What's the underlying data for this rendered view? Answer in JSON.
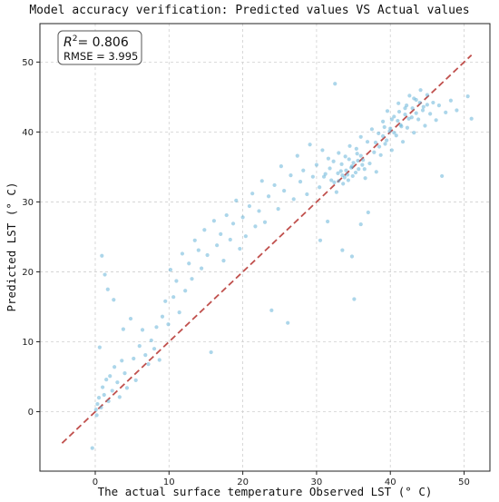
{
  "chart_data": {
    "type": "scatter",
    "title": "Model accuracy verification: Predicted values VS Actual values",
    "xlabel": "The actual surface temperature Observed LST (° C)",
    "ylabel": "Predicted LST (° C)",
    "xlim": [
      -7.5,
      53.5
    ],
    "ylim": [
      -8.5,
      55.5
    ],
    "xticks": [
      "0",
      "10",
      "20",
      "30",
      "40",
      "50"
    ],
    "yticks": [
      "0",
      "10",
      "20",
      "30",
      "40",
      "50"
    ],
    "grid": true,
    "reference_line": {
      "x": [
        -4.5,
        51
      ],
      "y": [
        -4.5,
        51
      ],
      "style": "dashed",
      "color": "#c0504d"
    },
    "stats": {
      "r2_label": "R",
      "r2_exponent": "2",
      "r2_value": "= 0.806",
      "rmse": "RMSE = 3.995"
    },
    "point_color": "#5aaed6",
    "points": [
      [
        -0.4,
        -5.2
      ],
      [
        0.1,
        0.3
      ],
      [
        0.3,
        1.1
      ],
      [
        0.5,
        2.0
      ],
      [
        0.2,
        -0.5
      ],
      [
        0.8,
        0.6
      ],
      [
        1.0,
        3.5
      ],
      [
        1.2,
        2.4
      ],
      [
        1.5,
        4.6
      ],
      [
        0.6,
        9.2
      ],
      [
        1.8,
        1.5
      ],
      [
        2.0,
        5.1
      ],
      [
        2.3,
        3.0
      ],
      [
        2.6,
        6.4
      ],
      [
        3.0,
        4.2
      ],
      [
        3.3,
        2.1
      ],
      [
        3.6,
        7.3
      ],
      [
        4.0,
        5.5
      ],
      [
        4.3,
        3.4
      ],
      [
        0.9,
        22.3
      ],
      [
        1.3,
        19.6
      ],
      [
        1.7,
        17.5
      ],
      [
        2.5,
        16.0
      ],
      [
        3.8,
        11.8
      ],
      [
        4.8,
        13.3
      ],
      [
        5.2,
        7.6
      ],
      [
        5.5,
        4.5
      ],
      [
        6.0,
        9.4
      ],
      [
        6.4,
        11.7
      ],
      [
        6.8,
        8.1
      ],
      [
        7.2,
        6.8
      ],
      [
        7.6,
        10.2
      ],
      [
        8.0,
        9.0
      ],
      [
        8.3,
        12.1
      ],
      [
        8.7,
        7.4
      ],
      [
        9.1,
        13.6
      ],
      [
        9.5,
        15.8
      ],
      [
        9.9,
        12.5
      ],
      [
        10.2,
        20.3
      ],
      [
        10.6,
        16.4
      ],
      [
        11.0,
        18.7
      ],
      [
        11.4,
        14.2
      ],
      [
        11.8,
        22.6
      ],
      [
        12.2,
        17.3
      ],
      [
        12.7,
        21.2
      ],
      [
        13.1,
        19.0
      ],
      [
        13.5,
        24.5
      ],
      [
        14.0,
        23.1
      ],
      [
        14.4,
        20.5
      ],
      [
        14.8,
        26.0
      ],
      [
        15.2,
        22.4
      ],
      [
        15.7,
        8.5
      ],
      [
        16.1,
        27.3
      ],
      [
        16.5,
        23.8
      ],
      [
        17.0,
        25.4
      ],
      [
        17.4,
        21.6
      ],
      [
        17.8,
        28.1
      ],
      [
        18.3,
        24.6
      ],
      [
        18.7,
        26.9
      ],
      [
        19.1,
        30.2
      ],
      [
        19.6,
        23.3
      ],
      [
        20.0,
        27.8
      ],
      [
        20.4,
        25.1
      ],
      [
        20.9,
        29.4
      ],
      [
        21.3,
        31.2
      ],
      [
        21.7,
        26.5
      ],
      [
        22.2,
        28.7
      ],
      [
        22.6,
        33.0
      ],
      [
        23.0,
        27.1
      ],
      [
        23.5,
        30.8
      ],
      [
        23.9,
        14.5
      ],
      [
        24.3,
        32.4
      ],
      [
        24.8,
        29.0
      ],
      [
        25.2,
        35.1
      ],
      [
        25.6,
        31.6
      ],
      [
        26.1,
        12.7
      ],
      [
        26.5,
        33.8
      ],
      [
        26.9,
        30.4
      ],
      [
        27.4,
        36.6
      ],
      [
        27.8,
        32.9
      ],
      [
        28.2,
        34.5
      ],
      [
        28.7,
        31.1
      ],
      [
        29.1,
        38.2
      ],
      [
        29.5,
        33.6
      ],
      [
        30.0,
        35.3
      ],
      [
        30.4,
        32.1
      ],
      [
        30.8,
        37.4
      ],
      [
        31.2,
        34.0
      ],
      [
        31.6,
        36.2
      ],
      [
        32.0,
        33.1
      ],
      [
        32.3,
        35.8
      ],
      [
        32.7,
        31.4
      ],
      [
        33.0,
        37.0
      ],
      [
        33.3,
        34.4
      ],
      [
        33.6,
        32.6
      ],
      [
        33.9,
        36.5
      ],
      [
        34.2,
        33.9
      ],
      [
        34.5,
        38.0
      ],
      [
        34.8,
        35.1
      ],
      [
        35.1,
        16.1
      ],
      [
        35.4,
        37.6
      ],
      [
        35.7,
        34.7
      ],
      [
        36.0,
        39.3
      ],
      [
        36.3,
        36.0
      ],
      [
        36.6,
        33.4
      ],
      [
        36.9,
        38.6
      ],
      [
        37.2,
        35.5
      ],
      [
        37.5,
        40.4
      ],
      [
        37.8,
        37.1
      ],
      [
        38.1,
        34.3
      ],
      [
        38.4,
        39.8
      ],
      [
        38.7,
        36.7
      ],
      [
        39.0,
        41.5
      ],
      [
        39.3,
        38.3
      ],
      [
        39.6,
        43.0
      ],
      [
        39.9,
        40.1
      ],
      [
        40.2,
        37.4
      ],
      [
        40.5,
        42.2
      ],
      [
        40.8,
        39.5
      ],
      [
        41.1,
        44.1
      ],
      [
        41.4,
        41.0
      ],
      [
        41.7,
        38.6
      ],
      [
        42.0,
        43.4
      ],
      [
        42.3,
        40.6
      ],
      [
        42.6,
        45.2
      ],
      [
        42.9,
        42.1
      ],
      [
        43.2,
        39.9
      ],
      [
        43.5,
        44.6
      ],
      [
        43.8,
        41.8
      ],
      [
        44.1,
        46.0
      ],
      [
        44.4,
        43.1
      ],
      [
        44.7,
        40.9
      ],
      [
        45.0,
        45.3
      ],
      [
        45.4,
        42.6
      ],
      [
        45.8,
        44.2
      ],
      [
        46.2,
        41.7
      ],
      [
        46.6,
        43.8
      ],
      [
        47.0,
        33.7
      ],
      [
        47.5,
        42.8
      ],
      [
        48.2,
        44.5
      ],
      [
        49.0,
        43.1
      ],
      [
        50.5,
        45.1
      ],
      [
        51.0,
        41.9
      ],
      [
        32.5,
        46.9
      ],
      [
        30.5,
        24.5
      ],
      [
        31.5,
        27.2
      ],
      [
        33.5,
        23.1
      ],
      [
        34.8,
        22.2
      ],
      [
        36.0,
        26.8
      ],
      [
        37.0,
        28.5
      ],
      [
        33.0,
        33.0
      ],
      [
        33.5,
        33.8
      ],
      [
        34.0,
        34.5
      ],
      [
        34.3,
        33.1
      ],
      [
        34.7,
        34.9
      ],
      [
        35.0,
        35.6
      ],
      [
        35.3,
        34.2
      ],
      [
        35.6,
        35.9
      ],
      [
        36.0,
        36.6
      ],
      [
        36.2,
        35.3
      ],
      [
        31.0,
        33.6
      ],
      [
        31.8,
        34.8
      ],
      [
        32.4,
        32.8
      ],
      [
        32.9,
        34.1
      ],
      [
        33.4,
        35.4
      ],
      [
        33.8,
        33.5
      ],
      [
        34.4,
        36.1
      ],
      [
        34.9,
        33.7
      ],
      [
        35.5,
        36.9
      ],
      [
        36.5,
        34.7
      ],
      [
        38.0,
        38.5
      ],
      [
        38.5,
        37.9
      ],
      [
        39.0,
        39.4
      ],
      [
        39.5,
        38.8
      ],
      [
        40.0,
        40.5
      ],
      [
        40.5,
        39.9
      ],
      [
        41.0,
        41.6
      ],
      [
        41.5,
        40.8
      ],
      [
        42.0,
        42.5
      ],
      [
        42.5,
        41.9
      ],
      [
        43.0,
        43.4
      ],
      [
        43.5,
        42.7
      ],
      [
        44.0,
        44.2
      ],
      [
        44.5,
        43.6
      ],
      [
        45.0,
        43.9
      ],
      [
        43.2,
        44.8
      ],
      [
        42.2,
        43.8
      ],
      [
        41.2,
        42.9
      ],
      [
        40.2,
        41.8
      ],
      [
        39.2,
        40.7
      ]
    ]
  }
}
